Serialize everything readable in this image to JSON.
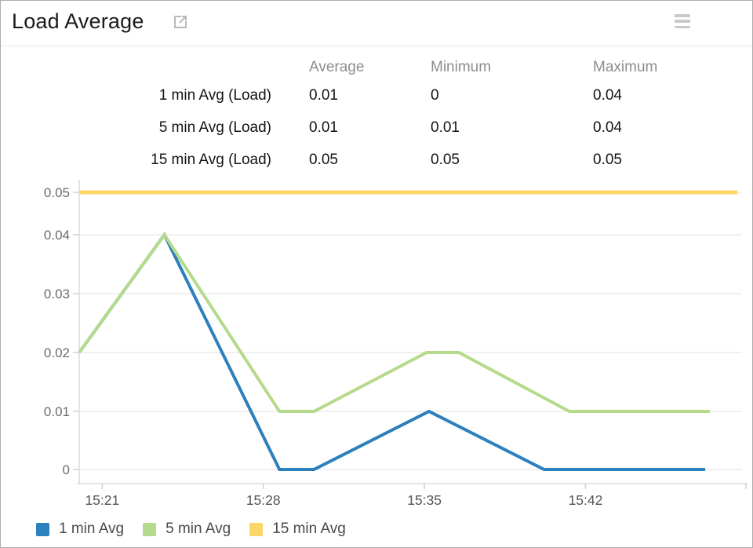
{
  "header": {
    "title": "Load Average",
    "open_icon": "external-link-icon",
    "menu_icon": "hamburger-menu-icon"
  },
  "stats_table": {
    "columns": [
      "Average",
      "Minimum",
      "Maximum"
    ],
    "rows": [
      {
        "label": "1 min Avg (Load)",
        "average": "0.01",
        "minimum": "0",
        "maximum": "0.04"
      },
      {
        "label": "5 min Avg (Load)",
        "average": "0.01",
        "minimum": "0.01",
        "maximum": "0.04"
      },
      {
        "label": "15 min Avg (Load)",
        "average": "0.05",
        "minimum": "0.05",
        "maximum": "0.05"
      }
    ]
  },
  "chart_data": {
    "type": "line",
    "title": "Load Average",
    "xlabel": "",
    "ylabel": "",
    "grid": true,
    "legend_position": "bottom",
    "ylim": [
      0,
      0.05
    ],
    "y_ticks": [
      {
        "v": 0.05,
        "label": "0.05"
      },
      {
        "v": 0.04,
        "label": "0.04"
      },
      {
        "v": 0.03,
        "label": "0.03"
      },
      {
        "v": 0.02,
        "label": "0.02"
      },
      {
        "v": 0.01,
        "label": "0.01"
      },
      {
        "v": 0,
        "label": "0"
      }
    ],
    "x_start_time": "15:20",
    "x_span_minutes": 28.8,
    "x_ticks": [
      {
        "t": 1,
        "label": "15:21"
      },
      {
        "t": 8,
        "label": "15:28"
      },
      {
        "t": 15,
        "label": "15:35"
      },
      {
        "t": 22,
        "label": "15:42"
      }
    ],
    "series": [
      {
        "name": "1 min Avg",
        "color": "#2c80bd",
        "width": 4,
        "points": [
          {
            "t": 0,
            "v": 0.02
          },
          {
            "t": 3.7,
            "v": 0.04
          },
          {
            "t": 8.7,
            "v": 0
          },
          {
            "t": 10.2,
            "v": 0
          },
          {
            "t": 15.2,
            "v": 0.01
          },
          {
            "t": 20.2,
            "v": 0
          },
          {
            "t": 27.2,
            "v": 0
          }
        ]
      },
      {
        "name": "5 min Avg",
        "color": "#b5da8c",
        "width": 4,
        "points": [
          {
            "t": 0,
            "v": 0.02
          },
          {
            "t": 3.7,
            "v": 0.04
          },
          {
            "t": 8.7,
            "v": 0.01
          },
          {
            "t": 10.2,
            "v": 0.01
          },
          {
            "t": 15.1,
            "v": 0.02
          },
          {
            "t": 16.5,
            "v": 0.02
          },
          {
            "t": 21.3,
            "v": 0.01
          },
          {
            "t": 27.4,
            "v": 0.01
          }
        ]
      },
      {
        "name": "15 min Avg",
        "color": "#fbd76a",
        "width": 5,
        "points": [
          {
            "t": 0,
            "v": 0.05
          },
          {
            "t": 28.6,
            "v": 0.05
          }
        ]
      }
    ]
  },
  "legend": {
    "items": [
      {
        "label": "1 min Avg",
        "color": "#2c80bd"
      },
      {
        "label": "5 min Avg",
        "color": "#b5da8c"
      },
      {
        "label": "15 min Avg",
        "color": "#fbd76a"
      }
    ]
  },
  "colors": {
    "gridline": "#ececec",
    "axis_line": "#dcdcdc",
    "tick": "#d0d0d0",
    "y_label": "#6b6b6b",
    "x_label": "#555555",
    "header_text": "#8d8d8d",
    "value_text": "#141414"
  }
}
